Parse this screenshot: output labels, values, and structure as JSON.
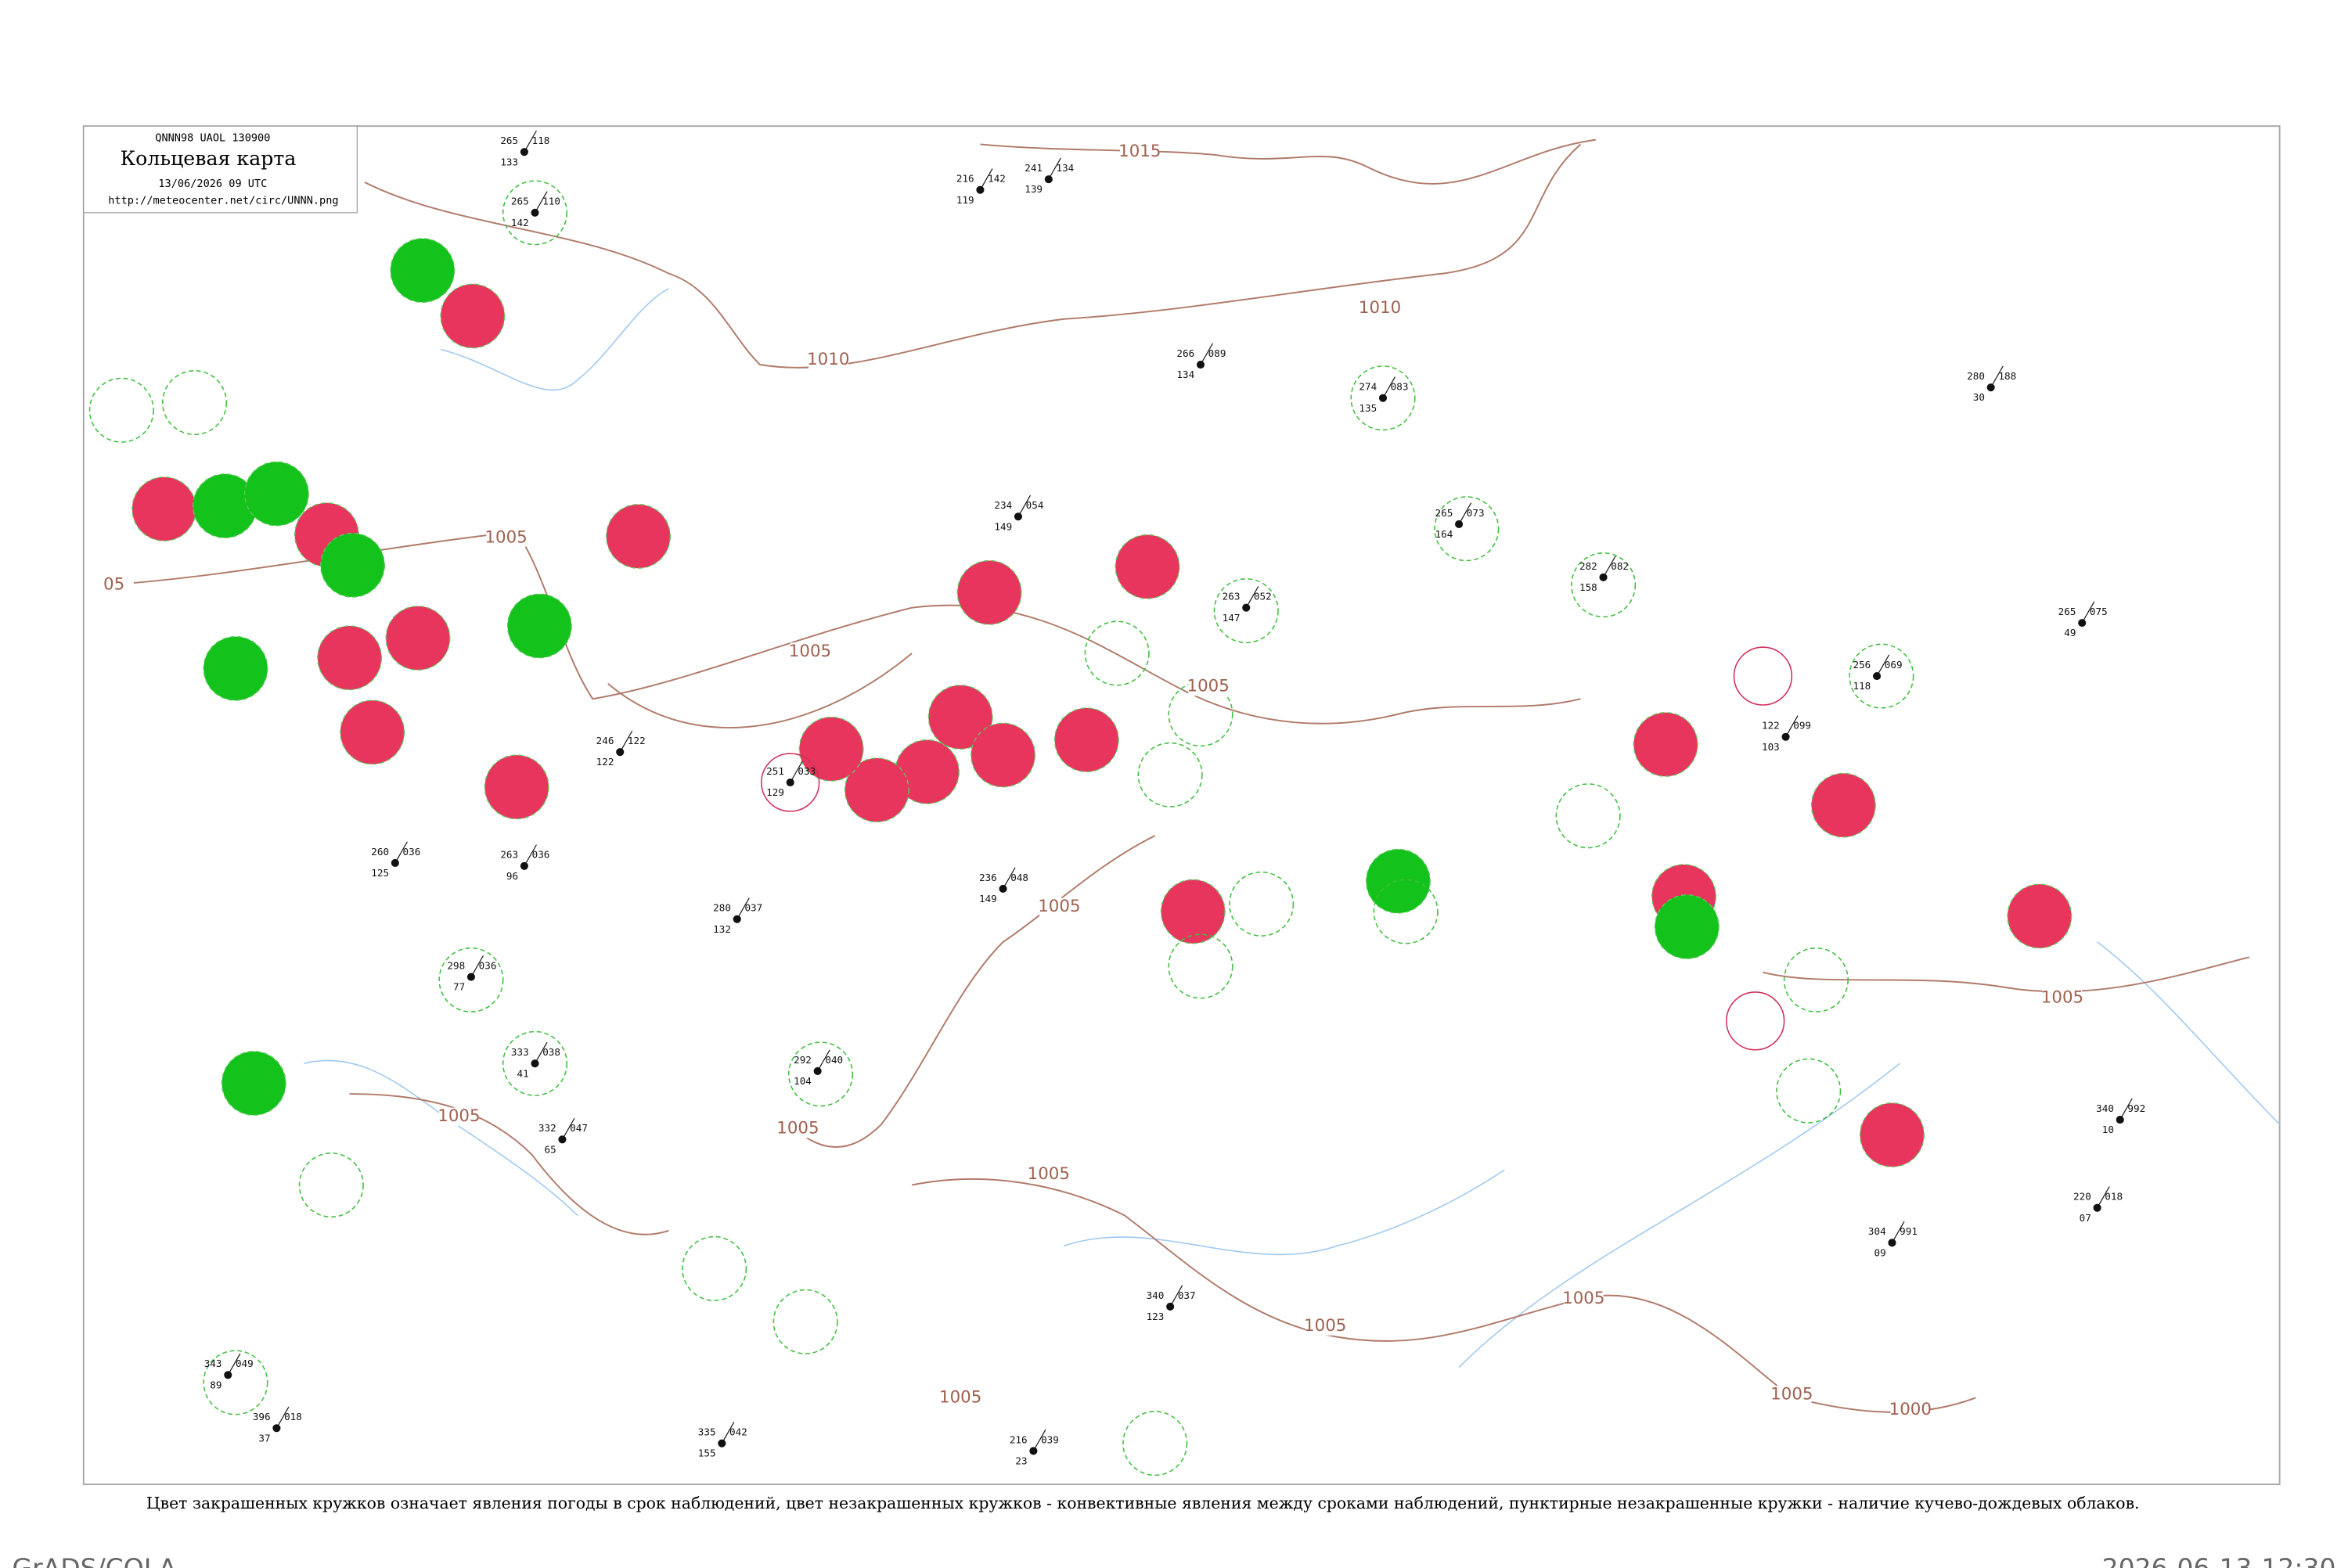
{
  "header": {
    "code": "QNNN98  UAOL  130900",
    "title": "Кольцевая карта",
    "date": "13/06/2026 09 UTC",
    "url": "http://meteocenter.net/circ/UNNN.png"
  },
  "isobar_labels": [
    "1015",
    "1010",
    "1010",
    "1005",
    "1005",
    "1005",
    "1005",
    "1005",
    "1005",
    "1005",
    "1005",
    "1005",
    "1005",
    "1000",
    "1005",
    "1005",
    "05"
  ],
  "stations": [
    {
      "upper_left": "265",
      "upper_right": "118",
      "lower_left": "133"
    },
    {
      "upper_left": "265",
      "upper_right": "110",
      "lower_left": "142"
    },
    {
      "upper_left": "216",
      "upper_right": "142",
      "lower_left": "119"
    },
    {
      "upper_left": "241",
      "upper_right": "134",
      "lower_left": "139"
    },
    {
      "upper_left": "266",
      "upper_right": "089",
      "lower_left": "134"
    },
    {
      "upper_left": "274",
      "upper_right": "083",
      "lower_left": "135"
    },
    {
      "upper_left": "280",
      "upper_right": "188",
      "lower_left": "30"
    },
    {
      "upper_left": "234",
      "upper_right": "054",
      "lower_left": "149"
    },
    {
      "upper_left": "265",
      "upper_right": "073",
      "lower_left": "164"
    },
    {
      "upper_left": "282",
      "upper_right": "082",
      "lower_left": "158"
    },
    {
      "upper_left": "265",
      "upper_right": "075",
      "lower_left": "49"
    },
    {
      "upper_left": "256",
      "upper_right": "069",
      "lower_left": "118"
    },
    {
      "upper_left": "122",
      "upper_right": "099",
      "lower_left": "103"
    },
    {
      "upper_left": "263",
      "upper_right": "052",
      "lower_left": "147"
    },
    {
      "upper_left": "246",
      "upper_right": "122",
      "lower_left": "122"
    },
    {
      "upper_left": "236",
      "upper_right": "048",
      "lower_left": "149"
    },
    {
      "upper_left": "251",
      "upper_right": "033",
      "lower_left": "129"
    },
    {
      "upper_left": "260",
      "upper_right": "036",
      "lower_left": "125"
    },
    {
      "upper_left": "263",
      "upper_right": "036",
      "lower_left": "96"
    },
    {
      "upper_left": "280",
      "upper_right": "037",
      "lower_left": "132"
    },
    {
      "upper_left": "298",
      "upper_right": "036",
      "lower_left": "77"
    },
    {
      "upper_left": "333",
      "upper_right": "038",
      "lower_left": "41"
    },
    {
      "upper_left": "292",
      "upper_right": "040",
      "lower_left": "104"
    },
    {
      "upper_left": "332",
      "upper_right": "047",
      "lower_left": "65"
    },
    {
      "upper_left": "220",
      "upper_right": "018",
      "lower_left": "07"
    },
    {
      "upper_left": "340",
      "upper_right": "992",
      "lower_left": "10"
    },
    {
      "upper_left": "304",
      "upper_right": "991",
      "lower_left": "09"
    },
    {
      "upper_left": "340",
      "upper_right": "037",
      "lower_left": "123"
    },
    {
      "upper_left": "343",
      "upper_right": "049",
      "lower_left": "89"
    },
    {
      "upper_left": "396",
      "upper_right": "018",
      "lower_left": "37"
    },
    {
      "upper_left": "335",
      "upper_right": "042",
      "lower_left": "155"
    },
    {
      "upper_left": "216",
      "upper_right": "039",
      "lower_left": "23"
    }
  ],
  "footer": {
    "note": "Цвет закрашенных кружков означает явления погоды в срок наблюдений, цвет незакрашенных кружков - конвективные явления между сроками наблюдений, пунктирные незакрашенные кружки - наличие кучево-дождевых облаков.",
    "credit": "GrADS/COLA",
    "timestamp": "2026-06-13-12:30"
  }
}
